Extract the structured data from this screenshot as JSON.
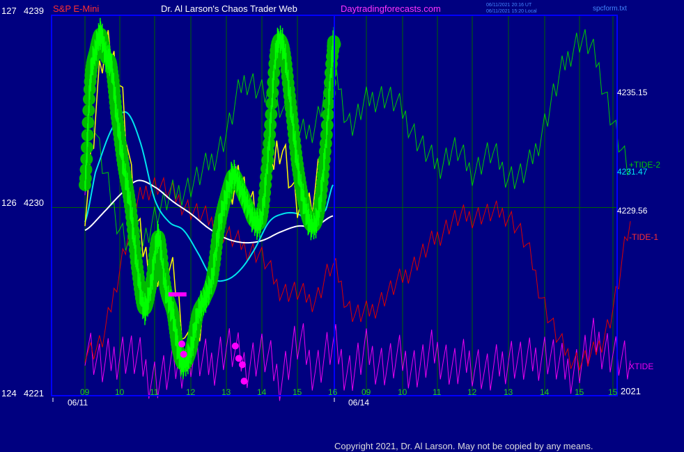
{
  "header": {
    "symbol_label": "S&P E-Mini",
    "title": "Dr. Al Larson's Chaos Trader Web",
    "site": "Daytradingforecasts.com",
    "utc_stamp": "06/11/2021 20:16 UT",
    "local_stamp": "06/11/2021 15:20 Local",
    "file": "spcform.txt"
  },
  "colors": {
    "background": "#000080",
    "frame": "#0000ff",
    "grid": "#006400",
    "price_bars": "#00ff00",
    "price_dots": "#00bb00",
    "fast_ma": "#ffff00",
    "mid_ma": "#00e5ee",
    "slow_ma": "#ffffff",
    "tide2": "#00cc00",
    "tide1": "#dd0000",
    "xtide": "#ee00ee",
    "magenta_markers": "#ff00ff",
    "red_text": "#ff3030",
    "title_text": "#ffffff",
    "site_text": "#ff33ff",
    "tick_text": "#22cc22",
    "copyright_text": "#dddddd"
  },
  "chart_data": {
    "type": "line",
    "title": "S&P E-Mini",
    "x_axis": {
      "hours": [
        "09",
        "10",
        "11",
        "12",
        "13",
        "14",
        "15",
        "16",
        "09",
        "10",
        "11",
        "12",
        "13",
        "14",
        "15",
        "15"
      ],
      "dates": [
        "06/11",
        "06/14"
      ],
      "year_label": "2021"
    },
    "y_axis": {
      "labels": [
        {
          "left": "127",
          "price": "4239",
          "value": 4239
        },
        {
          "left": "126",
          "price": "4230",
          "value": 4230
        },
        {
          "left": "124",
          "price": "4221",
          "value": 4221
        }
      ],
      "ylim": [
        4221,
        4239
      ]
    },
    "right_labels": {
      "value_high": "4235.15",
      "value_mid": "4231.47",
      "value_low": "4229.56",
      "tide2": "+TIDE-2",
      "tide1": "-TIDE-1",
      "xtide": "XTIDE"
    },
    "series": [
      {
        "name": "price",
        "x": [
          0,
          0.15,
          0.3,
          0.45,
          0.6,
          0.75,
          0.9,
          1.1,
          1.3,
          1.5,
          1.7,
          1.9,
          2.1,
          2.3,
          2.5,
          2.65,
          2.8,
          3.0,
          3.2,
          3.4,
          3.6,
          3.8,
          4.0,
          4.2,
          4.4,
          4.6,
          4.8,
          5.0,
          5.2,
          5.4,
          5.6,
          5.8,
          6.0,
          6.2,
          6.4,
          6.6,
          6.8,
          7.0,
          7.05
        ],
        "values": [
          4231,
          4236,
          4237.5,
          4238.3,
          4237.2,
          4236.8,
          4234.5,
          4232,
          4230,
          4227,
          4225,
          4226.2,
          4228.5,
          4226,
          4224.8,
          4223,
          4222.3,
          4223,
          4224.8,
          4225.5,
          4226.5,
          4229,
          4230.5,
          4231.5,
          4230.8,
          4230,
          4229.2,
          4229.5,
          4233,
          4237.5,
          4237.7,
          4235,
          4232,
          4230,
          4229,
          4229.7,
          4233,
          4237.5,
          4237.8
        ]
      },
      {
        "name": "fast average",
        "x": [
          0,
          0.5,
          1,
          1.5,
          2,
          2.5,
          3,
          3.5,
          4,
          4.5,
          5,
          5.5,
          6,
          6.5,
          7
        ],
        "values": [
          4230,
          4237,
          4236,
          4229,
          4227,
          4226.5,
          4223,
          4226,
          4230,
          4231,
          4229.5,
          4233,
          4230,
          4231,
          4236
        ]
      },
      {
        "name": "mid average",
        "x": [
          0,
          0.3,
          0.8,
          1.2,
          1.6,
          2,
          2.4,
          2.8,
          3.2,
          3.6,
          4,
          4.4,
          4.8,
          5.2,
          5.6,
          6,
          6.4,
          6.8,
          7
        ],
        "values": [
          4229.2,
          4231.6,
          4233.8,
          4234.5,
          4233,
          4230.3,
          4229.2,
          4228.8,
          4227.7,
          4226.5,
          4226.4,
          4226.9,
          4227.9,
          4229.2,
          4229.6,
          4229.6,
          4229.2,
          4229.8,
          4231
        ]
      },
      {
        "name": "slow average",
        "x": [
          0,
          0.5,
          1,
          1.5,
          2,
          2.5,
          3,
          3.5,
          4,
          4.5,
          5,
          5.5,
          6,
          6.5,
          7
        ],
        "values": [
          4228.8,
          4229.6,
          4230.5,
          4231.2,
          4230.9,
          4230.2,
          4229.6,
          4228.9,
          4228.4,
          4228.2,
          4228.3,
          4228.7,
          4229,
          4229,
          4229.5
        ]
      },
      {
        "name": "+TIDE-2",
        "x": [
          0,
          0.5,
          1,
          1.5,
          2,
          2.5,
          3,
          3.5,
          4,
          4.5,
          5,
          5.5,
          6,
          6.5,
          7,
          7.5,
          8,
          8.5,
          9,
          9.5,
          10,
          10.5,
          11,
          11.5,
          12,
          12.5,
          13,
          13.5,
          14,
          14.5,
          15,
          15.5
        ],
        "values": [
          4236,
          4232,
          4229,
          4228,
          4229.5,
          4230.5,
          4231,
          4232,
          4233.5,
          4236,
          4235.5,
          4235,
          4233.5,
          4234,
          4236.5,
          4234,
          4235,
          4235.3,
          4234.5,
          4233,
          4232,
          4232.7,
          4231.7,
          4232.5,
          4231.5,
          4231.7,
          4234,
          4236.5,
          4238,
          4237,
          4234,
          4231.5
        ]
      },
      {
        "name": "-TIDE-1",
        "x": [
          0,
          0.5,
          1,
          1.5,
          2,
          2.5,
          3,
          3.5,
          4,
          4.5,
          5,
          5.5,
          6,
          6.5,
          7,
          7.5,
          8,
          8.5,
          9,
          9.5,
          10,
          10.5,
          11,
          11.5,
          12,
          12.5,
          13,
          13.5,
          14,
          14.5,
          15,
          15.5
        ],
        "values": [
          4223,
          4223.5,
          4227,
          4230,
          4231,
          4230.5,
          4229.8,
          4229.3,
          4228.6,
          4228,
          4227.5,
          4226,
          4225.8,
          4225.5,
          4227,
          4225,
          4224.8,
          4225.6,
          4226.5,
          4227.5,
          4228.5,
          4229.3,
          4229.5,
          4229.6,
          4229.5,
          4228,
          4225.2,
          4223.2,
          4222.5,
          4223,
          4225,
          4229
        ]
      },
      {
        "name": "XTIDE",
        "x": [
          0,
          0.5,
          1,
          1.5,
          2,
          2.5,
          3,
          3.5,
          4,
          4.5,
          5,
          5.5,
          6,
          6.5,
          7,
          7.5,
          8,
          8.5,
          9,
          9.5,
          10,
          10.5,
          11,
          11.5,
          12,
          12.5,
          13,
          13.5,
          14,
          14.5,
          15,
          15.5
        ],
        "values": [
          4223.5,
          4222.2,
          4222.9,
          4222.5,
          4221.7,
          4222,
          4222.7,
          4222.3,
          4223.1,
          4222.4,
          4222.8,
          4221.8,
          4223.3,
          4222.2,
          4223.1,
          4222,
          4222.8,
          4222.3,
          4222.5,
          4222.2,
          4222.9,
          4222.1,
          4222.5,
          4221.8,
          4222.7,
          4222.3,
          4222.9,
          4222.1,
          4222.4,
          4223.4,
          4222.8,
          4222
        ]
      }
    ],
    "markers": {
      "magenta_dots_x": [
        2.75,
        2.8,
        4.25,
        4.35,
        4.45,
        4.5
      ],
      "magenta_dots_y": [
        4223.3,
        4222.8,
        4223.2,
        4222.6,
        4222.3,
        4221.5
      ]
    },
    "grid": true,
    "legend": "none"
  },
  "footer": {
    "copyright": "Copyright 2021, Dr. Al Larson. May not be copied by any means."
  }
}
